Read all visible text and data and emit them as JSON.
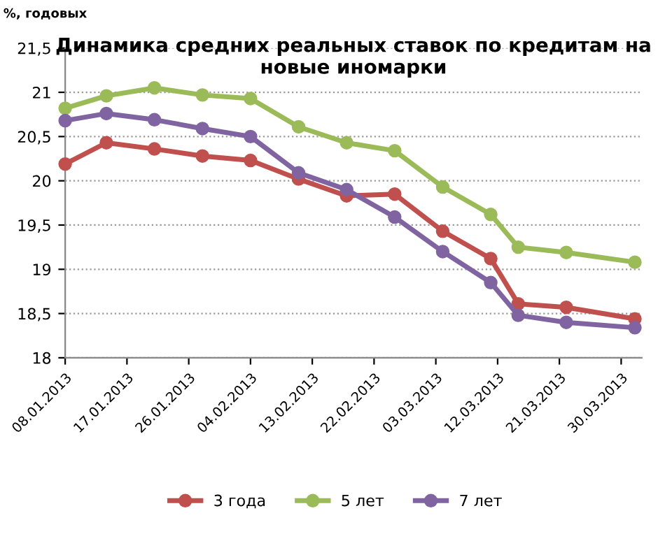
{
  "chart_data": {
    "type": "line",
    "title": "Динамика средних реальных ставок по кредитам на\nновые иномарки",
    "ylabel": "%, годовых",
    "x": [
      "2013-01-08",
      "2013-01-14",
      "2013-01-21",
      "2013-01-28",
      "2013-02-04",
      "2013-02-11",
      "2013-02-18",
      "2013-02-25",
      "2013-03-04",
      "2013-03-11",
      "2013-03-15",
      "2013-03-22",
      "2013-04-01"
    ],
    "series": [
      {
        "name": "3 года",
        "color": "#c0504d",
        "values": [
          20.19,
          20.43,
          20.36,
          20.28,
          20.23,
          20.02,
          19.83,
          19.85,
          19.43,
          19.12,
          18.61,
          18.57,
          18.44
        ]
      },
      {
        "name": "5 лет",
        "color": "#9bbb59",
        "values": [
          20.82,
          20.96,
          21.05,
          20.97,
          20.93,
          20.61,
          20.43,
          20.34,
          19.93,
          19.62,
          19.25,
          19.19,
          19.08
        ]
      },
      {
        "name": "7 лет",
        "color": "#8064a2",
        "values": [
          20.68,
          20.76,
          20.69,
          20.59,
          20.5,
          20.09,
          19.9,
          19.59,
          19.2,
          18.85,
          18.48,
          18.4,
          18.34
        ]
      }
    ],
    "xlim": [
      "2013-01-08",
      "2013-04-02"
    ],
    "xticks": [
      {
        "value": "2013-01-08",
        "label": "08.01.2013"
      },
      {
        "value": "2013-01-17",
        "label": "17.01.2013"
      },
      {
        "value": "2013-01-26",
        "label": "26.01.2013"
      },
      {
        "value": "2013-02-04",
        "label": "04.02.2013"
      },
      {
        "value": "2013-02-13",
        "label": "13.02.2013"
      },
      {
        "value": "2013-02-22",
        "label": "22.02.2013"
      },
      {
        "value": "2013-03-03",
        "label": "03.03.2013"
      },
      {
        "value": "2013-03-12",
        "label": "12.03.2013"
      },
      {
        "value": "2013-03-21",
        "label": "21.03.2013"
      },
      {
        "value": "2013-03-30",
        "label": "30.03.2013"
      }
    ],
    "ylim": [
      18,
      21.5
    ],
    "yticks": [
      18,
      {
        "value": 18.5,
        "label": "18,5"
      },
      19,
      {
        "value": 19.5,
        "label": "19,5"
      },
      20,
      {
        "value": 20.5,
        "label": "20,5"
      },
      21,
      {
        "value": 21.5,
        "label": "21,5"
      }
    ],
    "grid": "y",
    "legend": "bottom",
    "marker": "circle",
    "line_style": "solid"
  }
}
